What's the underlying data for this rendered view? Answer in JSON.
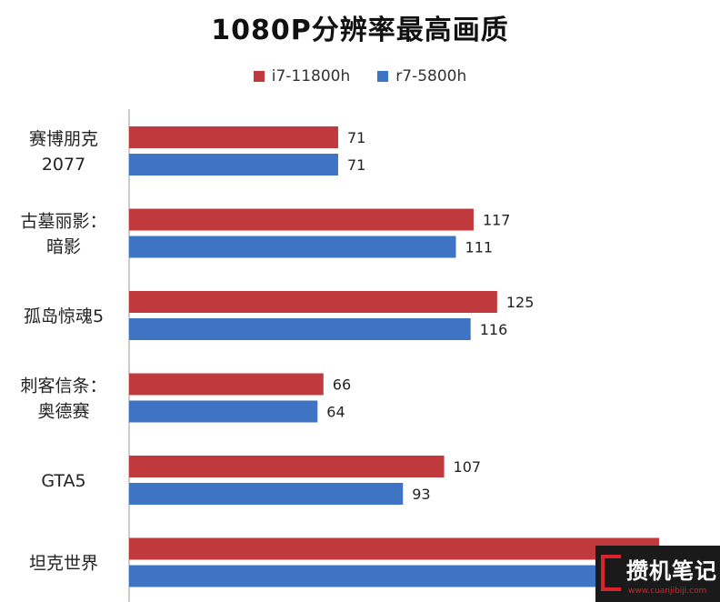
{
  "chart_data": {
    "type": "bar",
    "orientation": "horizontal",
    "title": "1080P分辨率最高画质",
    "categories": [
      [
        "赛博朋克",
        "2077"
      ],
      [
        "古墓丽影：",
        "暗影"
      ],
      [
        "孤岛惊魂5"
      ],
      [
        "刺客信条：",
        "奥德赛"
      ],
      [
        "GTA5"
      ],
      [
        "坦克世界"
      ]
    ],
    "series": [
      {
        "name": "i7-11800h",
        "color": "#c0393d",
        "values": [
          71,
          117,
          125,
          66,
          107,
          180
        ],
        "labels": [
          "71",
          "117",
          "125",
          "66",
          "107",
          ""
        ]
      },
      {
        "name": "r7-5800h",
        "color": "#3f74c4",
        "values": [
          71,
          111,
          116,
          64,
          93,
          180
        ],
        "labels": [
          "71",
          "111",
          "116",
          "64",
          "93",
          ""
        ]
      }
    ],
    "xlim": [
      0,
      180
    ],
    "legend_position": "top",
    "grid": false
  },
  "watermark": {
    "text": "攒机笔记",
    "url": "www.cuanjibiji.com"
  }
}
